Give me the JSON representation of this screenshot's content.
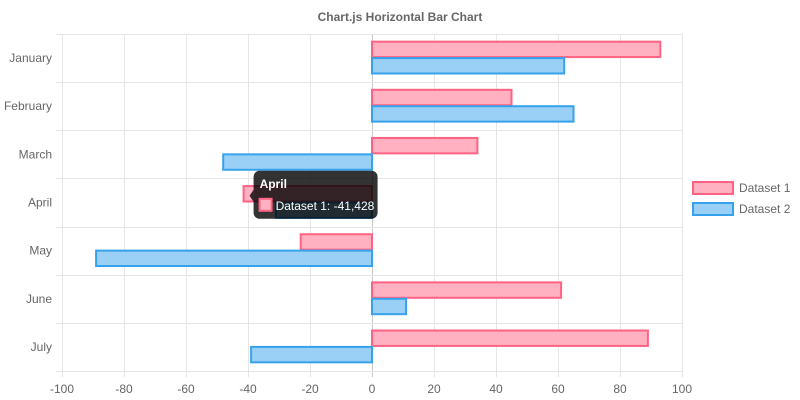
{
  "chart_data": {
    "type": "bar",
    "orientation": "horizontal",
    "title": "Chart.js Horizontal Bar Chart",
    "categories": [
      "January",
      "February",
      "March",
      "April",
      "May",
      "June",
      "July"
    ],
    "xlim": [
      -100,
      100
    ],
    "x_ticks": [
      -100,
      -80,
      -60,
      -40,
      -20,
      0,
      20,
      40,
      60,
      80,
      100
    ],
    "grid": true,
    "legend_position": "right",
    "series": [
      {
        "name": "Dataset 1",
        "fill": "#ffb1c1",
        "stroke": "#ff6384",
        "values": [
          93,
          45,
          34,
          -41.428,
          -23,
          61,
          89
        ]
      },
      {
        "name": "Dataset 2",
        "fill": "#9ad0f5",
        "stroke": "#36a2eb",
        "values": [
          62,
          65,
          -48,
          -31,
          -89,
          11,
          -39
        ]
      }
    ],
    "tooltip": {
      "title": "April",
      "label": "Dataset 1: -41,428",
      "category": "April",
      "series_index": 0
    }
  }
}
